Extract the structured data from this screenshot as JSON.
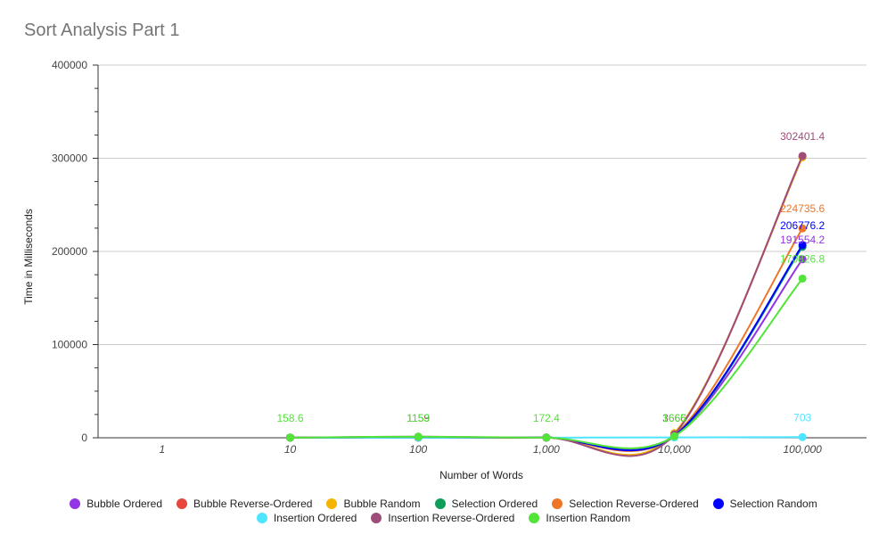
{
  "chart_data": {
    "type": "line",
    "title": "Sort Analysis Part 1",
    "xlabel": "Number of Words",
    "ylabel": "Time in Milliseconds",
    "categories": [
      "1",
      "10",
      "100",
      "1,000",
      "10,000",
      "100,000"
    ],
    "y_ticks": [
      "0",
      "100000",
      "200000",
      "300000",
      "400000"
    ],
    "ylim": [
      0,
      400000
    ],
    "grid": true,
    "legend_position": "bottom",
    "series": [
      {
        "name": "Bubble Ordered",
        "color": "#9334e6",
        "values": [
          null,
          150,
          200,
          220,
          2000,
          191554.2
        ],
        "labels": {
          "5": "191554.2"
        }
      },
      {
        "name": "Bubble Reverse-Ordered",
        "color": "#e8453c",
        "values": [
          null,
          150,
          250,
          250,
          4000,
          302401.4
        ],
        "labels": {}
      },
      {
        "name": "Bubble Random",
        "color": "#f4b400",
        "values": [
          null,
          150,
          260,
          230,
          5000,
          301000
        ],
        "labels": {}
      },
      {
        "name": "Selection Ordered",
        "color": "#0f9d58",
        "values": [
          null,
          140,
          200,
          200,
          1500,
          205000
        ],
        "labels": {}
      },
      {
        "name": "Selection Reverse-Ordered",
        "color": "#ee7627",
        "values": [
          null,
          150,
          220,
          230,
          3000,
          224735.6
        ],
        "labels": {
          "5": "224735.6"
        }
      },
      {
        "name": "Selection Random",
        "color": "#0000ff",
        "values": [
          null,
          140,
          200,
          210,
          2200,
          206776.2
        ],
        "labels": {
          "5": "206776.2"
        }
      },
      {
        "name": "Insertion Ordered",
        "color": "#4ee5ff",
        "values": [
          null,
          120,
          150,
          160,
          300,
          703
        ],
        "labels": {
          "5": "703"
        }
      },
      {
        "name": "Insertion Reverse-Ordered",
        "color": "#9e4d7a",
        "values": [
          null,
          158,
          1159,
          172,
          3666,
          302401.4
        ],
        "labels": {
          "2": "1159",
          "4": "3666",
          "5": "302401.4"
        }
      },
      {
        "name": "Insertion Random",
        "color": "#53e43a",
        "values": [
          null,
          158.6,
          1153,
          172.4,
          1665,
          170826.8
        ],
        "labels": {
          "1": "158.6",
          "2": "1153",
          "3": "172.4",
          "4": "1665",
          "5": "170826.8"
        }
      }
    ]
  }
}
